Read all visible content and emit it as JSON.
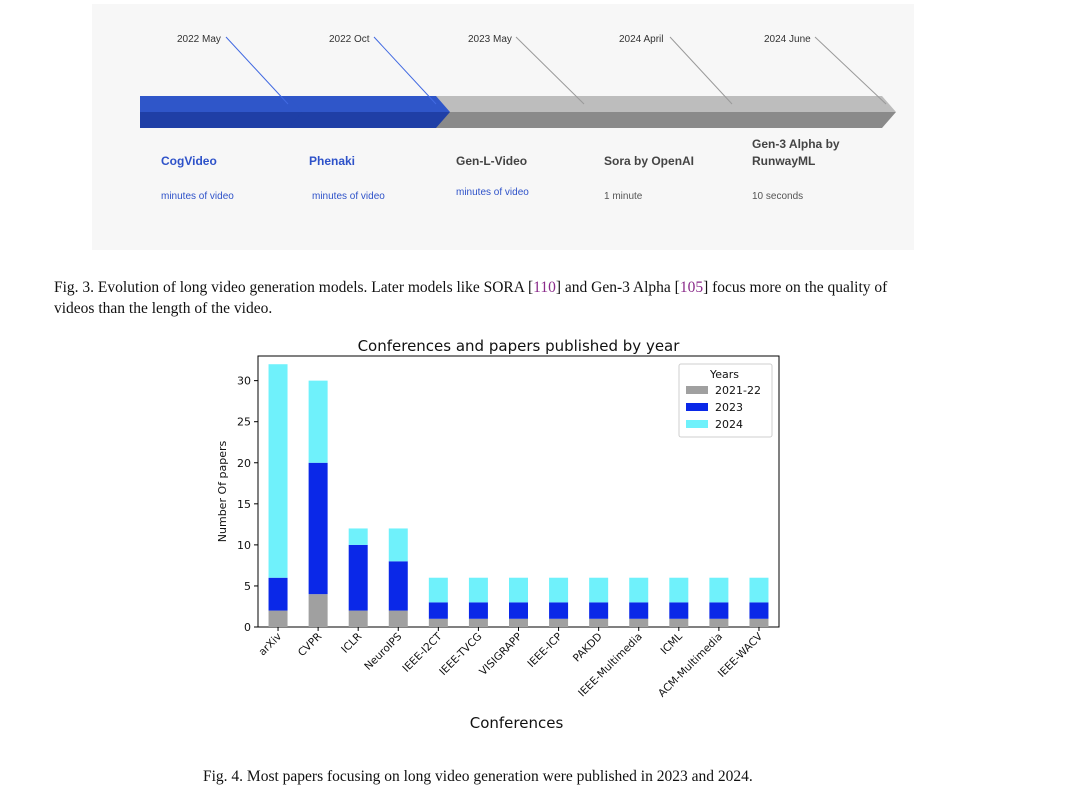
{
  "timeline": {
    "colors": {
      "blue_top": "#2f56c9",
      "blue_bottom": "#1f3fa6",
      "gray_top": "#bdbdbd",
      "gray_bottom": "#8a8a8a"
    },
    "models": [
      {
        "date": "2022 May",
        "name": "CogVideo",
        "note": "minutes of video"
      },
      {
        "date": "2022 Oct",
        "name": "Phenaki",
        "note": "minutes of video"
      },
      {
        "date": "2023 May",
        "name": "Gen-L-Video",
        "note": "minutes of video"
      },
      {
        "date": "2024 April",
        "name": "Sora by OpenAI",
        "note": "1 minute"
      },
      {
        "date": "2024 June",
        "name_line1": "Gen-3 Alpha by",
        "name_line2": "RunwayML",
        "note": "10 seconds"
      }
    ]
  },
  "captions": {
    "fig3_line1_prefix": "Fig. 3.  Evolution of long video generation models. Later models like SORA [",
    "fig3_ref1": "110",
    "fig3_mid": "] and Gen-3 Alpha [",
    "fig3_ref2": "105",
    "fig3_line1_suffix": "] focus more on the quality of",
    "fig3_line2": "videos than the length of the video.",
    "fig4": "Fig. 4.  Most papers focusing on long video generation were published in 2023 and 2024."
  },
  "chart_data": {
    "type": "bar",
    "stacked": true,
    "title": "Conferences and papers published by year",
    "xlabel": "Conferences",
    "ylabel": "Number Of papers",
    "ylim": [
      0,
      33
    ],
    "yticks": [
      0,
      5,
      10,
      15,
      20,
      25,
      30
    ],
    "categories": [
      "arXiv",
      "CVPR",
      "ICLR",
      "NeuroIPS",
      "IEEE-I2CT",
      "IEEE-TVCG",
      "VISIGRAPP",
      "IEEE-ICP",
      "PAKDD",
      "IEEE-Multimedia",
      "ICML",
      "ACM-Multimedia",
      "IEEE-WACV"
    ],
    "series": [
      {
        "name": "2021-22",
        "color": "#a0a0a0",
        "values": [
          2,
          4,
          2,
          2,
          1,
          1,
          1,
          1,
          1,
          1,
          1,
          1,
          1
        ]
      },
      {
        "name": "2023",
        "color": "#0a28e8",
        "values": [
          4,
          16,
          8,
          6,
          2,
          2,
          2,
          2,
          2,
          2,
          2,
          2,
          2
        ]
      },
      {
        "name": "2024",
        "color": "#6ff1fb",
        "values": [
          26,
          10,
          2,
          4,
          3,
          3,
          3,
          3,
          3,
          3,
          3,
          3,
          3
        ]
      }
    ],
    "legend_title": "Years",
    "legend_position": "top-right",
    "grid": false
  }
}
